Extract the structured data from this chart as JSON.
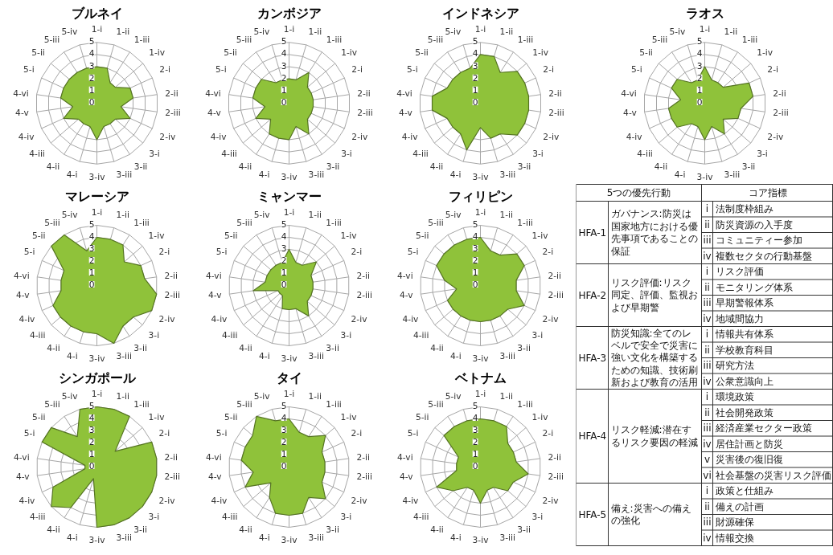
{
  "chart_data": [
    {
      "type": "radar",
      "title": "ブルネイ",
      "categories": [
        "1-i",
        "1-ii",
        "1-iii",
        "1-iv",
        "2-i",
        "2-ii",
        "2-iii",
        "2-iv",
        "3-i",
        "3-ii",
        "3-iii",
        "3-iv",
        "4-i",
        "4-ii",
        "4-iii",
        "4-iv",
        "4-v",
        "4-vi",
        "5-i",
        "5-ii",
        "5-iii",
        "5-iv"
      ],
      "ylim": [
        0,
        5
      ],
      "yticks": [
        0,
        1,
        2,
        3,
        4,
        5
      ],
      "grid": true,
      "series": [
        {
          "color": "#8fc23a",
          "values": [
            3,
            3,
            2,
            2,
            3,
            3,
            2,
            3,
            2,
            2,
            2,
            3,
            2,
            2,
            2,
            3,
            2,
            3,
            3,
            3,
            3,
            3
          ]
        }
      ]
    },
    {
      "type": "radar",
      "title": "カンボジア",
      "categories": [
        "1-i",
        "1-ii",
        "1-iii",
        "1-iv",
        "2-i",
        "2-ii",
        "2-iii",
        "2-iv",
        "3-i",
        "3-ii",
        "3-iii",
        "3-iv",
        "4-i",
        "4-ii",
        "4-iii",
        "4-iv",
        "4-v",
        "4-vi",
        "5-i",
        "5-ii",
        "5-iii",
        "5-iv"
      ],
      "ylim": [
        0,
        5
      ],
      "yticks": [
        0,
        1,
        2,
        3,
        4,
        5
      ],
      "grid": true,
      "series": [
        {
          "color": "#8fc23a",
          "values": [
            2,
            2,
            3,
            2,
            2,
            2,
            2,
            2,
            2,
            3,
            2,
            3,
            3,
            3,
            2,
            3,
            2,
            3,
            3,
            3,
            2,
            2
          ]
        }
      ]
    },
    {
      "type": "radar",
      "title": "インドネシア",
      "categories": [
        "1-i",
        "1-ii",
        "1-iii",
        "1-iv",
        "2-i",
        "2-ii",
        "2-iii",
        "2-iv",
        "3-i",
        "3-ii",
        "3-iii",
        "3-iv",
        "4-i",
        "4-ii",
        "4-iii",
        "4-iv",
        "4-v",
        "4-vi",
        "5-i",
        "5-ii",
        "5-iii",
        "5-iv"
      ],
      "ylim": [
        0,
        5
      ],
      "yticks": [
        0,
        1,
        2,
        3,
        4,
        5
      ],
      "grid": true,
      "series": [
        {
          "color": "#8fc23a",
          "values": [
            4,
            4,
            3,
            4,
            4,
            4,
            4,
            4,
            4,
            3,
            3,
            2,
            4,
            3,
            3,
            3,
            4,
            4,
            3,
            3,
            3,
            3
          ]
        }
      ]
    },
    {
      "type": "radar",
      "title": "ラオス",
      "categories": [
        "1-i",
        "1-ii",
        "1-iii",
        "1-iv",
        "2-i",
        "2-ii",
        "2-iii",
        "2-iv",
        "3-i",
        "3-ii",
        "3-iii",
        "3-iv",
        "4-i",
        "4-ii",
        "4-iii",
        "4-iv",
        "4-v",
        "4-vi",
        "5-i",
        "5-ii",
        "5-iii",
        "5-iv"
      ],
      "ylim": [
        0,
        5
      ],
      "yticks": [
        0,
        1,
        2,
        3,
        4,
        5
      ],
      "grid": true,
      "series": [
        {
          "color": "#8fc23a",
          "values": [
            3,
            2,
            2,
            2,
            4,
            4,
            3,
            3,
            2,
            3,
            2,
            3,
            2,
            2,
            3,
            3,
            3,
            2,
            3,
            3,
            2,
            2
          ]
        }
      ]
    },
    {
      "type": "radar",
      "title": "マレーシア",
      "categories": [
        "1-i",
        "1-ii",
        "1-iii",
        "1-iv",
        "2-i",
        "2-ii",
        "2-iii",
        "2-iv",
        "3-i",
        "3-ii",
        "3-iii",
        "3-iv",
        "4-i",
        "4-ii",
        "4-iii",
        "4-iv",
        "4-v",
        "4-vi",
        "5-i",
        "5-ii",
        "5-iii",
        "5-iv"
      ],
      "ylim": [
        0,
        5
      ],
      "yticks": [
        0,
        1,
        2,
        3,
        4,
        5
      ],
      "grid": true,
      "series": [
        {
          "color": "#8fc23a",
          "values": [
            4,
            4,
            4,
            3,
            4,
            4,
            5,
            5,
            4,
            4,
            5,
            4,
            4,
            4,
            4,
            4,
            3,
            3,
            3,
            5,
            5,
            3
          ]
        }
      ]
    },
    {
      "type": "radar",
      "title": "ミャンマー",
      "categories": [
        "1-i",
        "1-ii",
        "1-iii",
        "1-iv",
        "2-i",
        "2-ii",
        "2-iii",
        "2-iv",
        "3-i",
        "3-ii",
        "3-iii",
        "3-iv",
        "4-i",
        "4-ii",
        "4-iii",
        "4-iv",
        "4-v",
        "4-vi",
        "5-i",
        "5-ii",
        "5-iii",
        "5-iv"
      ],
      "ylim": [
        0,
        5
      ],
      "yticks": [
        0,
        1,
        2,
        3,
        4,
        5
      ],
      "grid": true,
      "series": [
        {
          "color": "#8fc23a",
          "values": [
            3,
            2,
            2,
            3,
            2,
            2,
            2,
            2,
            2,
            3,
            2,
            2,
            2,
            1,
            1,
            1,
            3,
            2,
            2,
            2,
            2,
            2
          ]
        }
      ]
    },
    {
      "type": "radar",
      "title": "フィリピン",
      "categories": [
        "1-i",
        "1-ii",
        "1-iii",
        "1-iv",
        "2-i",
        "2-ii",
        "2-iii",
        "2-iv",
        "3-i",
        "3-ii",
        "3-iii",
        "3-iv",
        "4-i",
        "4-ii",
        "4-iii",
        "4-iv",
        "4-v",
        "4-vi",
        "5-i",
        "5-ii",
        "5-iii",
        "5-iv"
      ],
      "ylim": [
        0,
        5
      ],
      "yticks": [
        0,
        1,
        2,
        3,
        4,
        5
      ],
      "grid": true,
      "series": [
        {
          "color": "#8fc23a",
          "values": [
            4,
            3,
            3,
            4,
            4,
            3,
            3,
            4,
            3,
            3,
            3,
            3,
            3,
            3,
            3,
            3,
            2,
            3,
            4,
            4,
            4,
            4
          ]
        }
      ]
    },
    {
      "type": "other",
      "categories": [
        "5つの優先行動",
        "コア指標"
      ],
      "y_categories": [
        "HFA-1",
        "HFA-2",
        "HFA-3",
        "HFA-4",
        "HFA-5"
      ],
      "cell_labels": [
        [
          "ガバナンス:防災は国家地方における優先事項であることの保証",
          [
            [
              "i",
              "法制度枠組み"
            ],
            [
              "ii",
              "防災資源の入手度"
            ],
            [
              "iii",
              "コミュニティー参加"
            ],
            [
              "iv",
              "複数セクタの行動基盤"
            ]
          ]
        ],
        [
          "リスク評価:リスク同定、評価、監視および早期警",
          [
            [
              "i",
              "リスク評価"
            ],
            [
              "ii",
              "モニタリング体系"
            ],
            [
              "iii",
              "早期警報体系"
            ],
            [
              "iv",
              "地域間協力"
            ]
          ]
        ],
        [
          "防災知識:全てのレベルで安全で災害に強い文化を構築するための知識、技術刷新および教育の活用",
          [
            [
              "i",
              "情報共有体系"
            ],
            [
              "ii",
              "学校教育科目"
            ],
            [
              "iii",
              "研究方法"
            ],
            [
              "iv",
              "公衆意識向上"
            ]
          ]
        ],
        [
          "リスク軽減:潜在するリスク要因の軽減",
          [
            [
              "i",
              "環境政策"
            ],
            [
              "ii",
              "社会開発政策"
            ],
            [
              "iii",
              "経済産業セクター政策"
            ],
            [
              "iv",
              "居住計画と防災"
            ],
            [
              "v",
              "災害後の復旧復"
            ],
            [
              "vi",
              "社会基盤の災害リスク評価"
            ]
          ]
        ],
        [
          "備え:災害への備えの強化",
          [
            [
              "i",
              "政策と仕組み"
            ],
            [
              "ii",
              "備えの計画"
            ],
            [
              "iii",
              "財源確保"
            ],
            [
              "iv",
              "情報交換"
            ]
          ]
        ]
      ]
    },
    {
      "type": "radar",
      "title": "シンガポール",
      "categories": [
        "1-i",
        "1-ii",
        "1-iii",
        "1-iv",
        "2-i",
        "2-ii",
        "2-iii",
        "2-iv",
        "3-i",
        "3-ii",
        "3-iii",
        "3-iv",
        "4-i",
        "4-ii",
        "4-iii",
        "4-iv",
        "4-v",
        "4-vi",
        "5-i",
        "5-ii",
        "5-iii",
        "5-iv"
      ],
      "ylim": [
        0,
        5
      ],
      "yticks": [
        0,
        1,
        2,
        3,
        4,
        5
      ],
      "grid": true,
      "series": [
        {
          "color": "#8fc23a",
          "values": [
            5,
            5,
            5,
            2,
            5,
            5,
            5,
            5,
            5,
            5,
            5,
            5,
            1,
            4,
            5,
            4,
            1,
            1,
            5,
            5,
            3,
            5
          ]
        }
      ]
    },
    {
      "type": "radar",
      "title": "タイ",
      "categories": [
        "1-i",
        "1-ii",
        "1-iii",
        "1-iv",
        "2-i",
        "2-ii",
        "2-iii",
        "2-iv",
        "3-i",
        "3-ii",
        "3-iii",
        "3-iv",
        "4-i",
        "4-ii",
        "4-iii",
        "4-iv",
        "4-v",
        "4-vi",
        "5-i",
        "5-ii",
        "5-iii",
        "5-iv"
      ],
      "ylim": [
        0,
        5
      ],
      "yticks": [
        0,
        1,
        2,
        3,
        4,
        5
      ],
      "grid": true,
      "series": [
        {
          "color": "#8fc23a",
          "values": [
            4,
            3,
            3,
            4,
            3,
            3,
            3,
            3,
            4,
            3,
            4,
            4,
            4,
            3,
            2,
            4,
            3,
            4,
            4,
            4,
            5,
            4
          ]
        }
      ]
    },
    {
      "type": "radar",
      "title": "ベトナム",
      "categories": [
        "1-i",
        "1-ii",
        "1-iii",
        "1-iv",
        "2-i",
        "2-ii",
        "2-iii",
        "2-iv",
        "3-i",
        "3-ii",
        "3-iii",
        "3-iv",
        "4-i",
        "4-ii",
        "4-iii",
        "4-iv",
        "4-v",
        "4-vi",
        "5-i",
        "5-ii",
        "5-iii",
        "5-iv"
      ],
      "ylim": [
        0,
        5
      ],
      "yticks": [
        0,
        1,
        2,
        3,
        4,
        5
      ],
      "grid": true,
      "series": [
        {
          "color": "#8fc23a",
          "values": [
            4,
            4,
            4,
            3,
            3,
            3,
            4,
            3,
            3,
            2,
            2,
            3,
            2,
            2,
            3,
            4,
            2,
            2,
            2,
            4,
            4,
            4
          ]
        }
      ]
    }
  ]
}
